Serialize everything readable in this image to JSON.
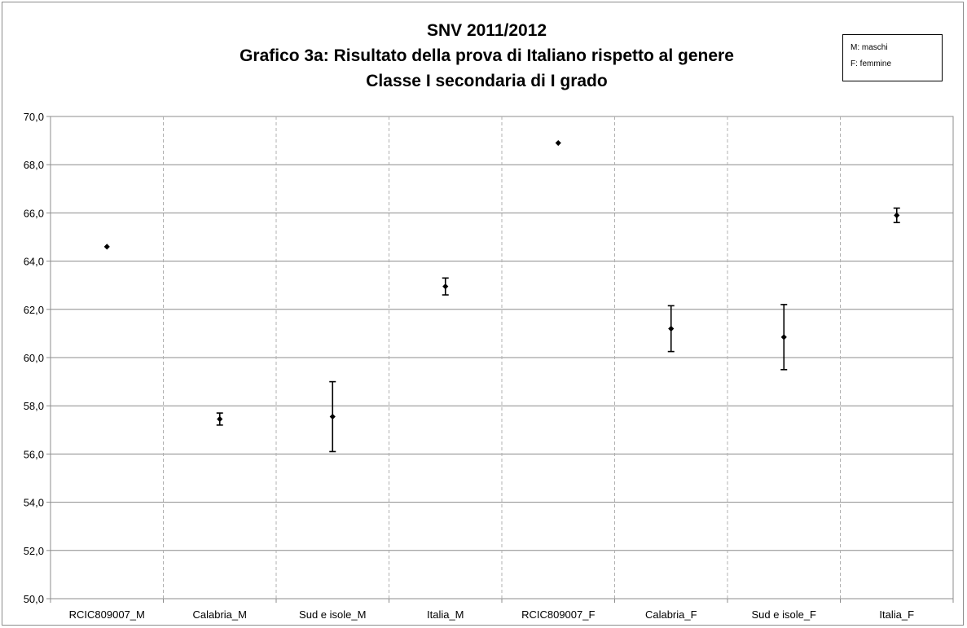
{
  "chart_data": {
    "type": "scatter",
    "title_lines": [
      "SNV 2011/2012",
      "Grafico 3a: Risultato della prova di Italiano rispetto al genere",
      "Classe I secondaria di I grado"
    ],
    "legend_box": [
      "M: maschi",
      "F: femmine"
    ],
    "categories": [
      "RCIC809007_M",
      "Calabria_M",
      "Sud e isole_M",
      "Italia_M",
      "RCIC809007_F",
      "Calabria_F",
      "Sud e isole_F",
      "Italia_F"
    ],
    "values": [
      64.6,
      57.45,
      57.55,
      62.95,
      68.9,
      61.2,
      60.85,
      65.9
    ],
    "error_low": [
      null,
      57.2,
      56.1,
      62.6,
      null,
      60.25,
      59.5,
      65.6
    ],
    "error_high": [
      null,
      57.7,
      59.0,
      63.3,
      null,
      62.15,
      62.2,
      66.2
    ],
    "ylim": [
      50,
      70
    ],
    "yticks": [
      "50,0",
      "52,0",
      "54,0",
      "56,0",
      "58,0",
      "60,0",
      "62,0",
      "64,0",
      "66,0",
      "68,0",
      "70,0"
    ],
    "grid": true,
    "marker_color": "#000000"
  }
}
